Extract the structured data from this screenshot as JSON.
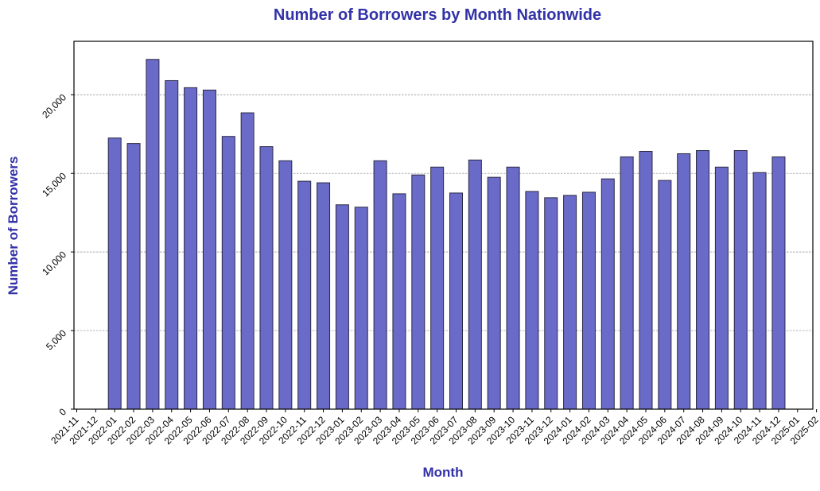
{
  "chart_data": {
    "type": "bar",
    "title": "Number of Borrowers by Month Nationwide",
    "xlabel": "Month",
    "ylabel": "Number of Borrowers",
    "ylim": [
      0,
      23400
    ],
    "yticks": [
      0,
      5000,
      10000,
      15000,
      20000
    ],
    "ytick_labels": [
      "0",
      "5,000",
      "10,000",
      "15,000",
      "20,000"
    ],
    "grid": "horizontal dashed",
    "xtick_labels": [
      "2021-11",
      "2021-12",
      "2022-01",
      "2022-02",
      "2022-03",
      "2022-04",
      "2022-05",
      "2022-06",
      "2022-07",
      "2022-08",
      "2022-09",
      "2022-10",
      "2022-11",
      "2022-12",
      "2023-01",
      "2023-02",
      "2023-03",
      "2023-04",
      "2023-05",
      "2023-06",
      "2023-07",
      "2023-08",
      "2023-09",
      "2023-10",
      "2023-11",
      "2023-12",
      "2024-01",
      "2024-02",
      "2024-03",
      "2024-04",
      "2024-05",
      "2024-06",
      "2024-07",
      "2024-08",
      "2024-09",
      "2024-10",
      "2024-11",
      "2024-12",
      "2025-01",
      "2025-02"
    ],
    "categories": [
      "2022-01",
      "2022-02",
      "2022-03",
      "2022-04",
      "2022-05",
      "2022-06",
      "2022-07",
      "2022-08",
      "2022-09",
      "2022-10",
      "2022-11",
      "2022-12",
      "2023-01",
      "2023-02",
      "2023-03",
      "2023-04",
      "2023-05",
      "2023-06",
      "2023-07",
      "2023-08",
      "2023-09",
      "2023-10",
      "2023-11",
      "2023-12",
      "2024-01",
      "2024-02",
      "2024-03",
      "2024-04",
      "2024-05",
      "2024-06",
      "2024-07",
      "2024-08",
      "2024-09",
      "2024-10",
      "2024-11",
      "2024-12"
    ],
    "values": [
      17250,
      16900,
      22250,
      20900,
      20450,
      20300,
      17350,
      18850,
      16700,
      15800,
      14500,
      14400,
      13000,
      12850,
      15800,
      13700,
      14900,
      15400,
      13750,
      15850,
      14750,
      15400,
      13850,
      13450,
      13600,
      13800,
      14650,
      16050,
      16400,
      14550,
      16250,
      16450,
      15400,
      16450,
      15050,
      16050
    ],
    "colors": {
      "bar_fill": "#6a6ac8",
      "bar_edge": "#2a2a44",
      "text_accent": "#3232a8",
      "grid": "#888888"
    }
  }
}
